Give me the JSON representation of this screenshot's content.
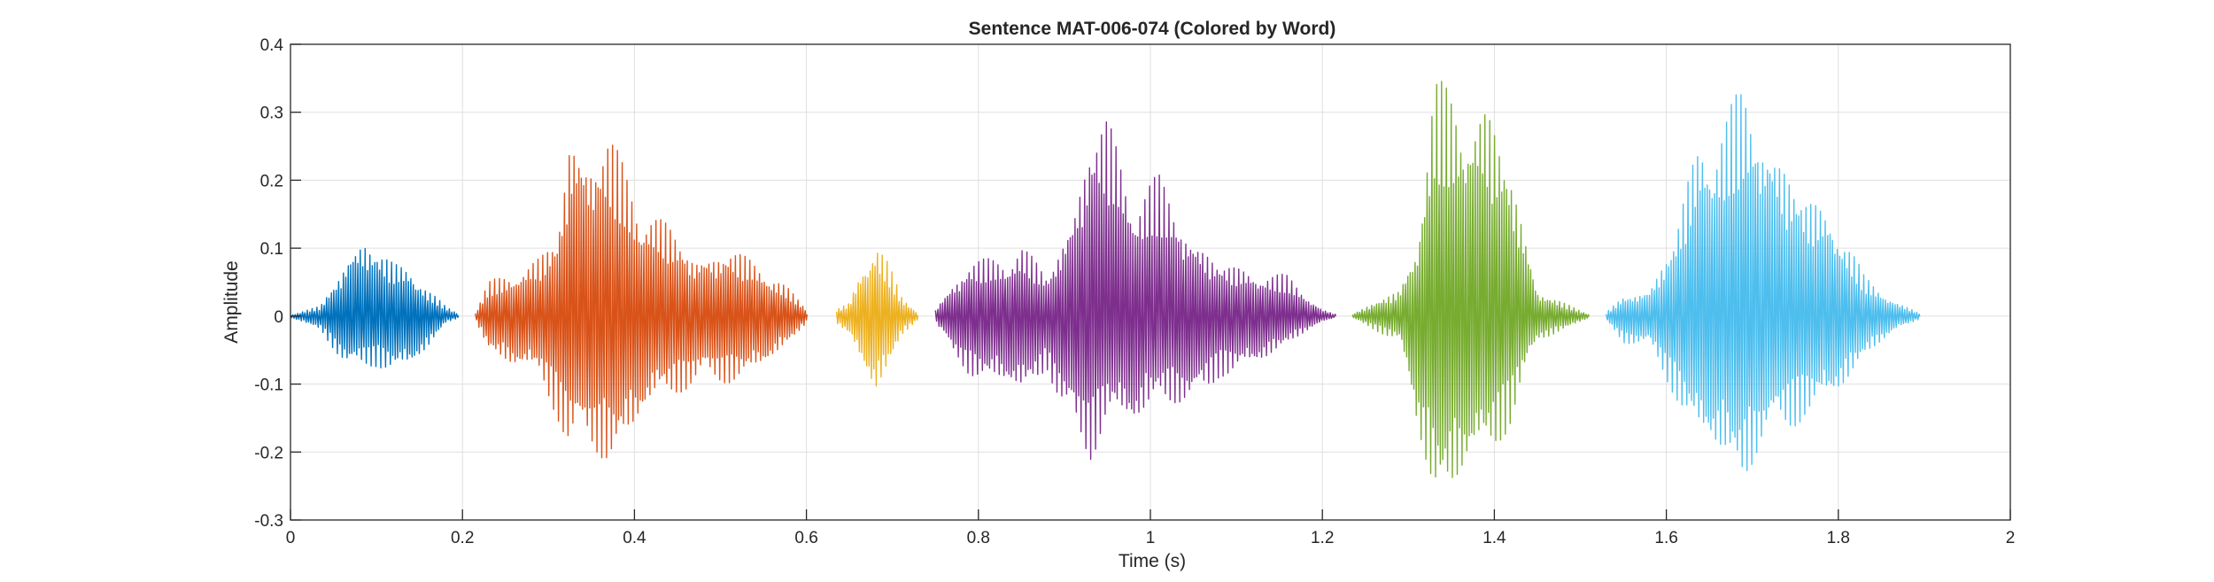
{
  "chart_data": {
    "type": "line",
    "title": "Sentence MAT-006-074 (Colored by Word)",
    "xlabel": "Time (s)",
    "ylabel": "Amplitude",
    "xlim": [
      0,
      2
    ],
    "ylim": [
      -0.3,
      0.4
    ],
    "x_ticks": [
      0,
      0.2,
      0.4,
      0.6,
      0.8,
      1,
      1.2,
      1.4,
      1.6,
      1.8,
      2
    ],
    "x_tick_labels": [
      "0",
      "0.2",
      "0.4",
      "0.6",
      "0.8",
      "1",
      "1.2",
      "1.4",
      "1.6",
      "1.8",
      "2"
    ],
    "y_ticks": [
      -0.3,
      -0.2,
      -0.1,
      0,
      0.1,
      0.2,
      0.3,
      0.4
    ],
    "y_tick_labels": [
      "-0.3",
      "-0.2",
      "-0.1",
      "0",
      "0.1",
      "0.2",
      "0.3",
      "0.4"
    ],
    "grid": true,
    "series": [
      {
        "color": "#0072BD",
        "x": [
          0.0,
          0.035,
          0.05,
          0.07,
          0.085,
          0.1,
          0.12,
          0.14,
          0.16,
          0.18,
          0.195
        ],
        "upper": [
          0.002,
          0.015,
          0.05,
          0.1,
          0.12,
          0.1,
          0.08,
          0.08,
          0.04,
          0.015,
          0.004
        ],
        "lower": [
          -0.002,
          -0.02,
          -0.05,
          -0.095,
          -0.08,
          -0.075,
          -0.085,
          -0.08,
          -0.05,
          -0.01,
          -0.003
        ]
      },
      {
        "color": "#D95319",
        "x": [
          0.215,
          0.23,
          0.26,
          0.29,
          0.31,
          0.325,
          0.345,
          0.37,
          0.4,
          0.43,
          0.47,
          0.51,
          0.55,
          0.58,
          0.6
        ],
        "upper": [
          0.005,
          0.05,
          0.07,
          0.09,
          0.12,
          0.28,
          0.26,
          0.27,
          0.2,
          0.15,
          0.09,
          0.1,
          0.08,
          0.04,
          0.01
        ],
        "lower": [
          -0.005,
          -0.05,
          -0.08,
          -0.09,
          -0.15,
          -0.22,
          -0.21,
          -0.22,
          -0.18,
          -0.12,
          -0.11,
          -0.1,
          -0.08,
          -0.04,
          -0.01
        ]
      },
      {
        "color": "#EDB120",
        "x": [
          0.635,
          0.65,
          0.665,
          0.68,
          0.695,
          0.71,
          0.73
        ],
        "upper": [
          0.01,
          0.02,
          0.08,
          0.125,
          0.08,
          0.03,
          0.005
        ],
        "lower": [
          -0.01,
          -0.03,
          -0.08,
          -0.12,
          -0.08,
          -0.03,
          -0.005
        ]
      },
      {
        "color": "#7E2F8E",
        "x": [
          0.75,
          0.77,
          0.79,
          0.82,
          0.85,
          0.88,
          0.91,
          0.93,
          0.95,
          0.98,
          1.01,
          1.05,
          1.08,
          1.12,
          1.16,
          1.2,
          1.215
        ],
        "upper": [
          0.01,
          0.05,
          0.08,
          0.09,
          0.11,
          0.06,
          0.16,
          0.28,
          0.3,
          0.2,
          0.21,
          0.12,
          0.08,
          0.07,
          0.06,
          0.01,
          0.003
        ],
        "lower": [
          -0.01,
          -0.06,
          -0.09,
          -0.1,
          -0.12,
          -0.08,
          -0.2,
          -0.22,
          -0.15,
          -0.18,
          -0.12,
          -0.15,
          -0.09,
          -0.08,
          -0.04,
          -0.01,
          -0.002
        ]
      },
      {
        "color": "#77AC30",
        "x": [
          1.235,
          1.26,
          1.29,
          1.31,
          1.33,
          1.35,
          1.37,
          1.39,
          1.42,
          1.45,
          1.48,
          1.51
        ],
        "upper": [
          0.003,
          0.02,
          0.04,
          0.12,
          0.35,
          0.34,
          0.34,
          0.32,
          0.22,
          0.04,
          0.02,
          0.003
        ],
        "lower": [
          -0.003,
          -0.02,
          -0.04,
          -0.18,
          -0.27,
          -0.27,
          -0.24,
          -0.22,
          -0.16,
          -0.04,
          -0.02,
          -0.003
        ]
      },
      {
        "color": "#4DBEEE",
        "x": [
          1.53,
          1.55,
          1.58,
          1.61,
          1.64,
          1.67,
          1.69,
          1.71,
          1.73,
          1.76,
          1.79,
          1.83,
          1.87,
          1.895
        ],
        "upper": [
          0.005,
          0.03,
          0.04,
          0.12,
          0.29,
          0.31,
          0.34,
          0.31,
          0.25,
          0.18,
          0.17,
          0.06,
          0.02,
          0.004
        ],
        "lower": [
          -0.005,
          -0.04,
          -0.05,
          -0.12,
          -0.2,
          -0.22,
          -0.25,
          -0.21,
          -0.19,
          -0.15,
          -0.14,
          -0.06,
          -0.02,
          -0.004
        ]
      }
    ]
  }
}
